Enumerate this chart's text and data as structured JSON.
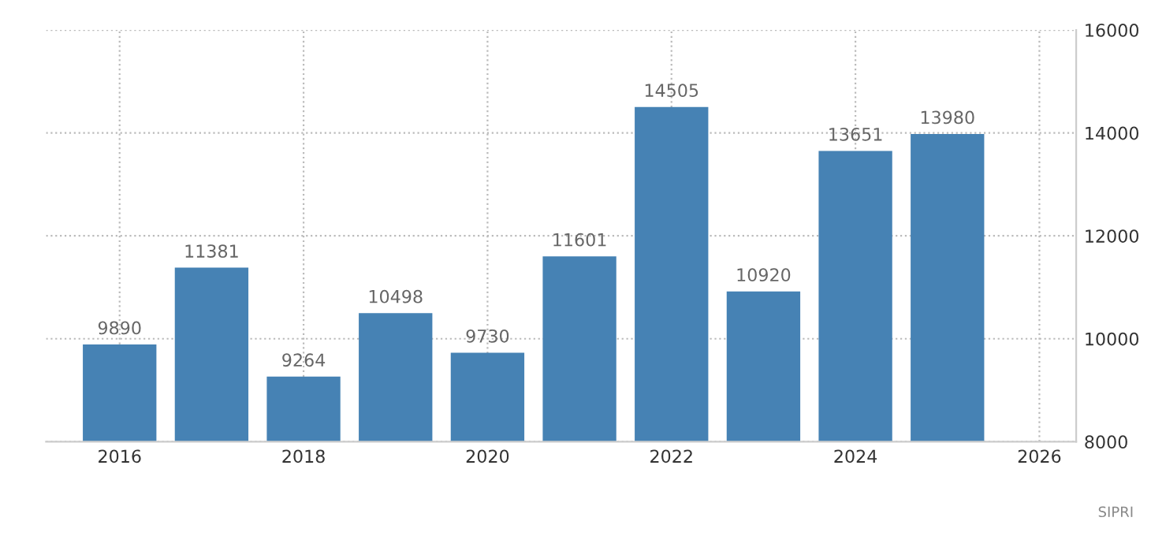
{
  "chart_data": {
    "type": "bar",
    "x": [
      2016,
      2017,
      2018,
      2019,
      2020,
      2021,
      2022,
      2023,
      2024,
      2025
    ],
    "values": [
      9890,
      11381,
      9264,
      10498,
      9730,
      11601,
      14505,
      10920,
      13651,
      13980
    ],
    "color": "#4682b4",
    "data_labels": true,
    "xlim": [
      2015.2,
      2026.4
    ],
    "xticks": [
      2016,
      2018,
      2020,
      2022,
      2024,
      2026
    ],
    "ylim": [
      8000,
      16000
    ],
    "yticks": [
      8000,
      10000,
      12000,
      14000,
      16000
    ],
    "grid": true,
    "annotations": [
      "SIPRI"
    ]
  }
}
